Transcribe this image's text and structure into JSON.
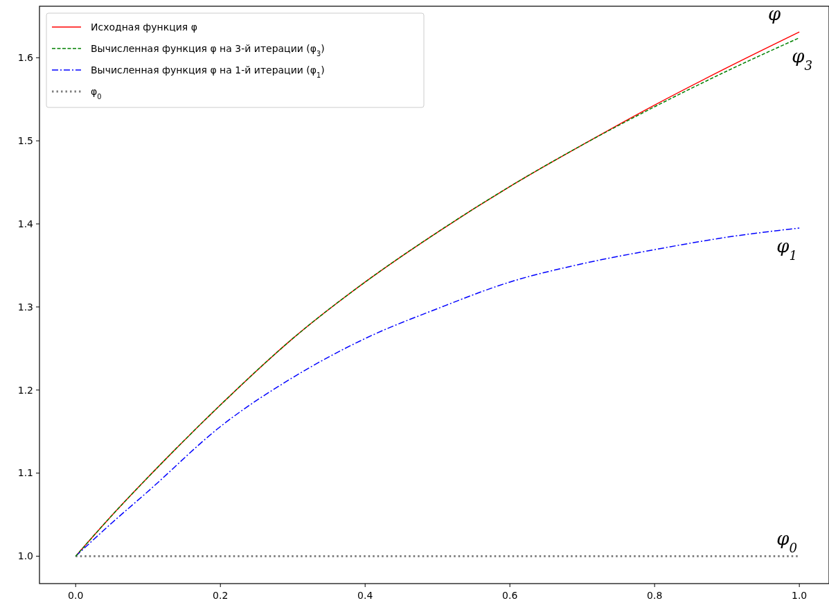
{
  "chart_data": {
    "type": "line",
    "x": [
      0,
      0.05,
      0.1,
      0.2,
      0.3,
      0.4,
      0.5,
      0.6,
      0.7,
      0.8,
      0.9,
      1.0
    ],
    "series": [
      {
        "name": "Исходная функция φ",
        "color": "#ff0000",
        "line_style": "solid",
        "values": [
          1.0,
          1.049,
          1.095,
          1.182,
          1.262,
          1.33,
          1.39,
          1.445,
          1.495,
          1.543,
          1.588,
          1.631
        ]
      },
      {
        "name": "Вычисленная функция φ на 3-й итерации (φ$_{3}$)",
        "color": "#008000",
        "line_style": "dashed",
        "values": [
          1.0,
          1.049,
          1.095,
          1.182,
          1.262,
          1.33,
          1.39,
          1.445,
          1.495,
          1.541,
          1.584,
          1.624
        ]
      },
      {
        "name": "Вычисленная функция φ на 1-й итерации (φ$_{1}$)",
        "color": "#0000ff",
        "line_style": "dashdot",
        "values": [
          1.0,
          1.04,
          1.078,
          1.156,
          1.215,
          1.262,
          1.298,
          1.33,
          1.352,
          1.369,
          1.384,
          1.395
        ]
      },
      {
        "name": "φ$_{0}$",
        "color": "#808080",
        "line_style": "dotted",
        "values": [
          1.0,
          1.0,
          1.0,
          1.0,
          1.0,
          1.0,
          1.0,
          1.0,
          1.0,
          1.0,
          1.0,
          1.0
        ]
      }
    ],
    "annotations": [
      "φ",
      "φ$_{3}$",
      "φ$_{1}$",
      "φ$_{0}$"
    ],
    "xlim": [
      -0.05,
      1.041
    ],
    "ylim": [
      0.967,
      1.662
    ],
    "xticks": [
      {
        "value": 0,
        "label": "0.0"
      },
      0.2,
      0.4,
      0.6,
      0.8,
      {
        "value": 1,
        "label": "1.0"
      }
    ],
    "yticks": [
      {
        "value": 1,
        "label": "1.0"
      },
      1.1,
      1.2,
      1.3,
      1.4,
      1.5,
      1.6
    ],
    "grid": false,
    "legend": "top left",
    "marker": "none"
  }
}
